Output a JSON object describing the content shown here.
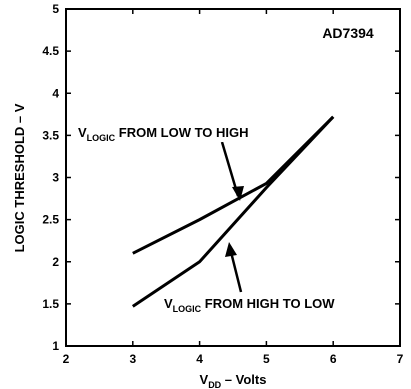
{
  "chart_data": {
    "type": "line",
    "title": "",
    "watermark_label": "AD7394",
    "xlabel_main": "V",
    "xlabel_sub": "DD",
    "xlabel_rest": " – Volts",
    "ylabel": "LOGIC THRESHOLD – V",
    "xlim": [
      2,
      7
    ],
    "ylim": [
      1,
      5
    ],
    "x_ticks": [
      "2",
      "3",
      "4",
      "5",
      "6",
      "7"
    ],
    "y_ticks": [
      "1",
      "1.5",
      "2",
      "2.5",
      "3",
      "3.5",
      "4",
      "4.5",
      "5"
    ],
    "grid": false,
    "series": [
      {
        "label_main": "V",
        "label_sub": "LOGIC",
        "label_rest": " FROM LOW TO HIGH",
        "points": [
          [
            3.0,
            2.1
          ],
          [
            4.0,
            2.5
          ],
          [
            5.0,
            2.93
          ],
          [
            6.0,
            3.72
          ]
        ]
      },
      {
        "label_main": "V",
        "label_sub": "LOGIC",
        "label_rest": " FROM HIGH TO LOW",
        "points": [
          [
            3.0,
            1.47
          ],
          [
            4.0,
            2.0
          ],
          [
            5.0,
            2.88
          ],
          [
            6.0,
            3.72
          ]
        ]
      }
    ],
    "colors": {
      "line": "#000000",
      "background": "#ffffff"
    }
  }
}
